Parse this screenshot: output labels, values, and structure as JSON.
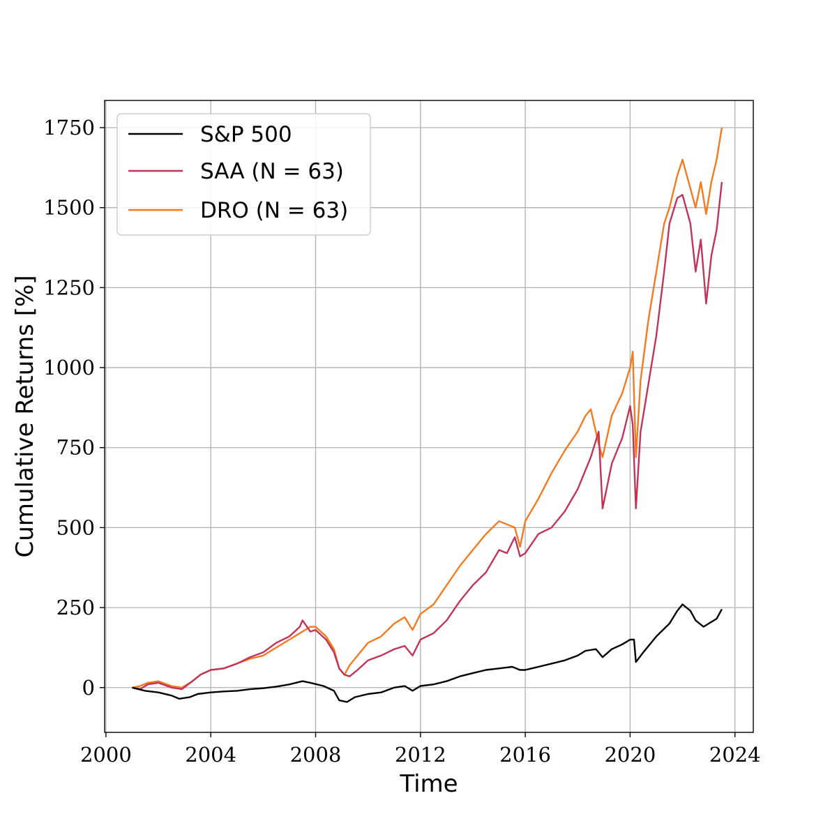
{
  "chart_data": {
    "type": "line",
    "title": "",
    "xlabel": "Time",
    "ylabel": "Cumulative Returns [%]",
    "xlim": [
      1999.95,
      2024.7
    ],
    "ylim": [
      -140,
      1835
    ],
    "x_ticks": [
      2000,
      2004,
      2008,
      2012,
      2016,
      2020,
      2024
    ],
    "x_tick_labels": [
      "2000",
      "2004",
      "2008",
      "2012",
      "2016",
      "2020",
      "2024"
    ],
    "y_ticks": [
      0,
      250,
      500,
      750,
      1000,
      1250,
      1500,
      1750
    ],
    "y_tick_labels": [
      "0",
      "250",
      "500",
      "750",
      "1000",
      "1250",
      "1500",
      "1750"
    ],
    "grid": true,
    "legend_position": "top-left",
    "series": [
      {
        "name": "S&P 500",
        "color": "#000000",
        "x": [
          2001.0,
          2001.5,
          2002.0,
          2002.5,
          2002.8,
          2003.2,
          2003.5,
          2004.0,
          2004.5,
          2005.0,
          2005.5,
          2006.0,
          2006.5,
          2007.0,
          2007.5,
          2007.8,
          2008.3,
          2008.7,
          2008.9,
          2009.2,
          2009.5,
          2010.0,
          2010.5,
          2011.0,
          2011.4,
          2011.7,
          2012.0,
          2012.5,
          2013.0,
          2013.5,
          2014.0,
          2014.5,
          2015.0,
          2015.5,
          2015.8,
          2016.0,
          2016.5,
          2017.0,
          2017.5,
          2018.0,
          2018.3,
          2018.7,
          2018.95,
          2019.3,
          2019.7,
          2020.0,
          2020.15,
          2020.22,
          2020.5,
          2020.8,
          2021.0,
          2021.5,
          2021.8,
          2022.0,
          2022.3,
          2022.5,
          2022.8,
          2023.0,
          2023.3,
          2023.5
        ],
        "values": [
          0,
          -10,
          -15,
          -25,
          -35,
          -30,
          -20,
          -15,
          -12,
          -10,
          -5,
          -2,
          3,
          10,
          20,
          15,
          5,
          -10,
          -40,
          -45,
          -30,
          -20,
          -15,
          0,
          5,
          -10,
          5,
          10,
          20,
          35,
          45,
          55,
          60,
          65,
          55,
          55,
          65,
          75,
          85,
          100,
          115,
          120,
          95,
          120,
          135,
          150,
          150,
          80,
          110,
          140,
          160,
          200,
          240,
          260,
          240,
          210,
          190,
          200,
          215,
          245
        ]
      },
      {
        "name": "SAA (N = 63)",
        "color": "#c0345a",
        "x": [
          2001.0,
          2001.3,
          2001.6,
          2002.0,
          2002.5,
          2002.9,
          2003.3,
          2003.6,
          2004.0,
          2004.5,
          2005.0,
          2005.5,
          2006.0,
          2006.5,
          2007.0,
          2007.4,
          2007.5,
          2007.8,
          2008.0,
          2008.4,
          2008.7,
          2008.9,
          2009.1,
          2009.3,
          2009.6,
          2010.0,
          2010.5,
          2011.0,
          2011.4,
          2011.7,
          2012.0,
          2012.5,
          2013.0,
          2013.5,
          2014.0,
          2014.5,
          2015.0,
          2015.3,
          2015.6,
          2015.8,
          2016.0,
          2016.5,
          2017.0,
          2017.5,
          2018.0,
          2018.5,
          2018.8,
          2018.95,
          2019.3,
          2019.7,
          2020.0,
          2020.1,
          2020.22,
          2020.4,
          2020.7,
          2021.0,
          2021.3,
          2021.5,
          2021.8,
          2022.0,
          2022.3,
          2022.5,
          2022.7,
          2022.9,
          2023.1,
          2023.3,
          2023.5
        ],
        "values": [
          0,
          -5,
          10,
          15,
          0,
          -5,
          20,
          40,
          55,
          60,
          75,
          95,
          110,
          140,
          160,
          190,
          210,
          175,
          180,
          150,
          110,
          60,
          40,
          35,
          55,
          85,
          100,
          120,
          130,
          100,
          150,
          170,
          210,
          270,
          320,
          360,
          430,
          420,
          470,
          410,
          420,
          480,
          500,
          550,
          620,
          720,
          800,
          560,
          700,
          780,
          880,
          820,
          560,
          800,
          950,
          1100,
          1300,
          1450,
          1530,
          1540,
          1450,
          1300,
          1400,
          1200,
          1350,
          1430,
          1580
        ]
      },
      {
        "name": "DRO (N = 63)",
        "color": "#f47a20",
        "x": [
          2001.0,
          2001.3,
          2001.6,
          2002.0,
          2002.5,
          2002.9,
          2003.3,
          2003.6,
          2004.0,
          2004.5,
          2005.0,
          2005.5,
          2006.0,
          2006.5,
          2007.0,
          2007.4,
          2007.8,
          2008.0,
          2008.4,
          2008.7,
          2008.9,
          2009.1,
          2009.3,
          2009.6,
          2010.0,
          2010.5,
          2011.0,
          2011.4,
          2011.7,
          2012.0,
          2012.5,
          2013.0,
          2013.5,
          2014.0,
          2014.5,
          2015.0,
          2015.3,
          2015.6,
          2015.8,
          2016.0,
          2016.5,
          2017.0,
          2017.5,
          2018.0,
          2018.3,
          2018.5,
          2018.8,
          2018.95,
          2019.3,
          2019.7,
          2020.0,
          2020.1,
          2020.22,
          2020.4,
          2020.7,
          2021.0,
          2021.3,
          2021.5,
          2021.8,
          2022.0,
          2022.3,
          2022.5,
          2022.7,
          2022.9,
          2023.1,
          2023.3,
          2023.5
        ],
        "values": [
          0,
          5,
          15,
          20,
          5,
          0,
          20,
          40,
          55,
          60,
          75,
          90,
          100,
          125,
          150,
          170,
          190,
          190,
          160,
          120,
          60,
          40,
          70,
          100,
          140,
          160,
          200,
          220,
          180,
          230,
          260,
          320,
          380,
          430,
          480,
          520,
          510,
          500,
          440,
          520,
          590,
          670,
          740,
          800,
          850,
          870,
          760,
          720,
          850,
          920,
          1000,
          1050,
          720,
          960,
          1150,
          1300,
          1450,
          1500,
          1600,
          1650,
          1560,
          1500,
          1580,
          1480,
          1580,
          1650,
          1750
        ]
      }
    ]
  }
}
